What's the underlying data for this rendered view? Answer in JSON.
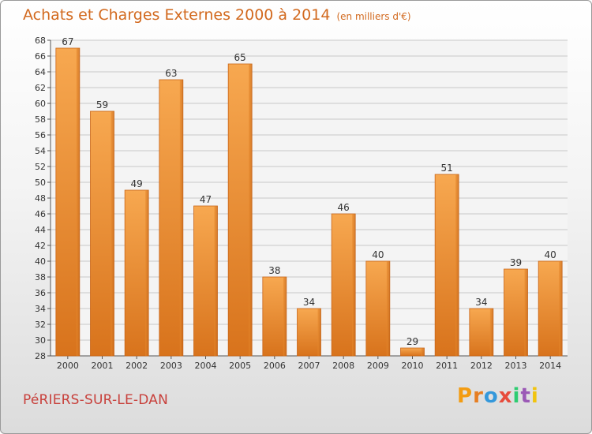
{
  "title": "Achats et Charges Externes 2000 à 2014",
  "unit": "(en milliers d'€)",
  "commune": "PéRIERS-SUR-LE-DAN",
  "logo": "Proxiti",
  "colors": {
    "bar": "#f0a050",
    "bar_dark": "#d9781e",
    "title": "#d2691e",
    "commune": "#c8413c"
  },
  "chart_data": {
    "type": "bar",
    "categories": [
      "2000",
      "2001",
      "2002",
      "2003",
      "2004",
      "2005",
      "2006",
      "2007",
      "2008",
      "2009",
      "2010",
      "2011",
      "2012",
      "2013",
      "2014"
    ],
    "values": [
      67,
      59,
      49,
      63,
      47,
      65,
      38,
      34,
      46,
      40,
      29,
      51,
      34,
      39,
      40
    ],
    "ylim": [
      28,
      68
    ],
    "yticks": [
      28,
      30,
      32,
      34,
      36,
      38,
      40,
      42,
      44,
      46,
      48,
      50,
      52,
      54,
      56,
      58,
      60,
      62,
      64,
      66,
      68
    ],
    "grid": true
  }
}
